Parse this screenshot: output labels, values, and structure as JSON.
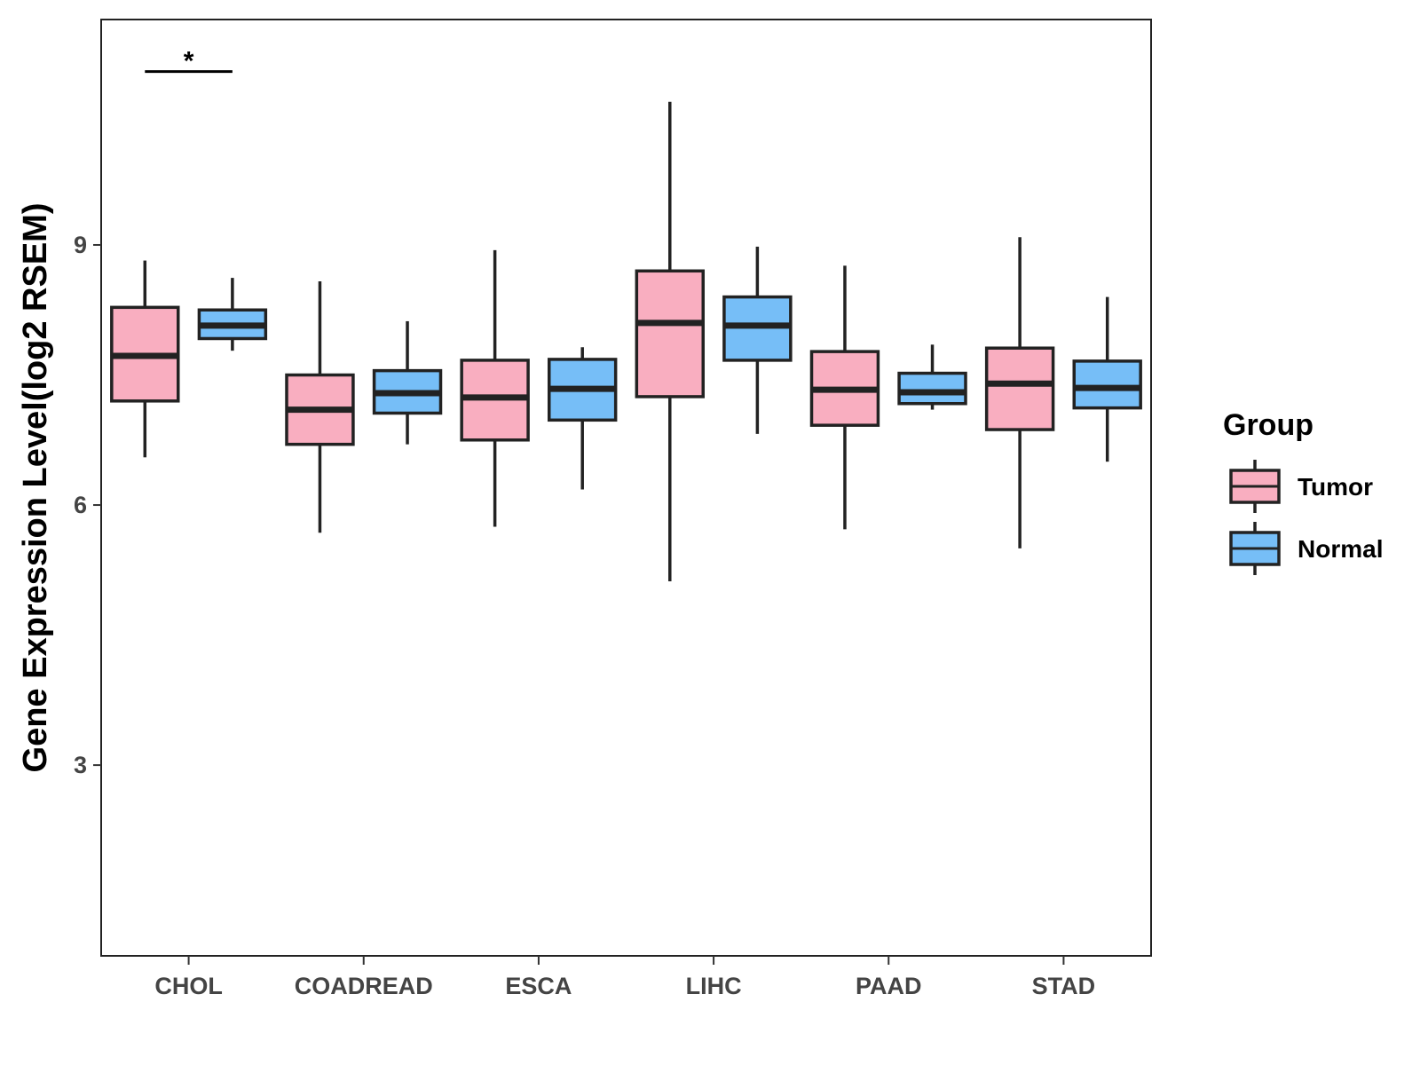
{
  "chart_data": {
    "type": "boxplot",
    "title": "",
    "xlabel": "",
    "ylabel": "Gene Expression Level(log2 RSEM)",
    "ylim": [
      0.8,
      11.6
    ],
    "yticks": [
      3,
      6,
      9
    ],
    "categories": [
      "CHOL",
      "COADREAD",
      "ESCA",
      "LIHC",
      "PAAD",
      "STAD"
    ],
    "legend": {
      "title": "Group",
      "position": "right"
    },
    "series": [
      {
        "name": "Tumor",
        "color": "#F9AEC0",
        "boxes": [
          {
            "min": 6.55,
            "q1": 7.2,
            "median": 7.72,
            "q3": 8.28,
            "max": 8.82
          },
          {
            "min": 5.68,
            "q1": 6.7,
            "median": 7.1,
            "q3": 7.5,
            "max": 8.58
          },
          {
            "min": 5.75,
            "q1": 6.75,
            "median": 7.24,
            "q3": 7.67,
            "max": 8.94
          },
          {
            "min": 5.12,
            "q1": 7.25,
            "median": 8.1,
            "q3": 8.7,
            "max": 10.65
          },
          {
            "min": 5.72,
            "q1": 6.92,
            "median": 7.33,
            "q3": 7.77,
            "max": 8.76
          },
          {
            "min": 5.5,
            "q1": 6.87,
            "median": 7.4,
            "q3": 7.81,
            "max": 9.09
          }
        ]
      },
      {
        "name": "Normal",
        "color": "#76BEF7",
        "boxes": [
          {
            "min": 7.78,
            "q1": 7.92,
            "median": 8.07,
            "q3": 8.25,
            "max": 8.62
          },
          {
            "min": 6.7,
            "q1": 7.06,
            "median": 7.29,
            "q3": 7.55,
            "max": 8.12
          },
          {
            "min": 6.18,
            "q1": 6.98,
            "median": 7.34,
            "q3": 7.68,
            "max": 7.82
          },
          {
            "min": 6.82,
            "q1": 7.67,
            "median": 8.07,
            "q3": 8.4,
            "max": 8.98
          },
          {
            "min": 7.1,
            "q1": 7.17,
            "median": 7.3,
            "q3": 7.52,
            "max": 7.85
          },
          {
            "min": 6.5,
            "q1": 7.12,
            "median": 7.35,
            "q3": 7.66,
            "max": 8.4
          }
        ]
      }
    ],
    "annotations": [
      {
        "category": "CHOL",
        "text": "*",
        "y": 11.0
      }
    ]
  }
}
